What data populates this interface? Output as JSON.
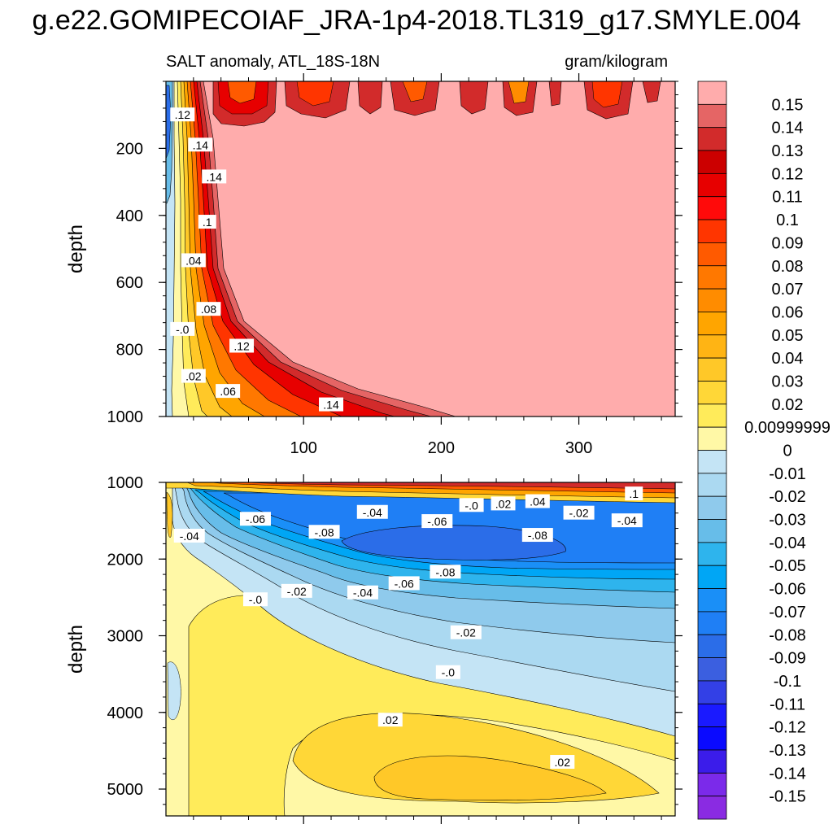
{
  "title": "g.e22.GOMIPECOIAF_JRA-1p4-2018.TL319_g17.SMYLE.004",
  "chart_data": [
    {
      "type": "heatmap",
      "panel": "upper",
      "subtitle_left": "SALT anomaly, ATL_18S-18N",
      "subtitle_right": "gram/kilogram",
      "ylabel": "depth",
      "xlabel": "",
      "xlim": [
        0,
        370
      ],
      "ylim": [
        1000,
        0
      ],
      "x_ticks": [
        "100",
        "200",
        "300"
      ],
      "y_ticks": [
        "200",
        "400",
        "600",
        "800",
        "1000"
      ],
      "fill_outside": 0.15,
      "contour_labels": [
        {
          "text": ".12",
          "x": 12,
          "y": 100
        },
        {
          "text": ".14",
          "x": 25,
          "y": 190
        },
        {
          "text": ".14",
          "x": 35,
          "y": 285
        },
        {
          "text": ".1",
          "x": 30,
          "y": 420
        },
        {
          "text": ".04",
          "x": 20,
          "y": 535
        },
        {
          "text": ".08",
          "x": 31,
          "y": 680
        },
        {
          "text": "-.0",
          "x": 12,
          "y": 740
        },
        {
          "text": ".12",
          "x": 55,
          "y": 790
        },
        {
          "text": ".02",
          "x": 20,
          "y": 880
        },
        {
          "text": ".06",
          "x": 45,
          "y": 925
        },
        {
          "text": ".14",
          "x": 120,
          "y": 965
        }
      ]
    },
    {
      "type": "heatmap",
      "panel": "lower",
      "ylabel": "depth",
      "xlabel": "",
      "xlim": [
        0,
        370
      ],
      "ylim": [
        5350,
        1000
      ],
      "y_ticks": [
        "1000",
        "2000",
        "3000",
        "4000",
        "5000"
      ],
      "contour_labels": [
        {
          "text": ".1",
          "x": 340,
          "y": 1150
        },
        {
          "text": ".04",
          "x": 270,
          "y": 1250
        },
        {
          "text": ".02",
          "x": 245,
          "y": 1280
        },
        {
          "text": "-.0",
          "x": 222,
          "y": 1300
        },
        {
          "text": "-.02",
          "x": 300,
          "y": 1400
        },
        {
          "text": "-.04",
          "x": 335,
          "y": 1500
        },
        {
          "text": "-.04",
          "x": 150,
          "y": 1390
        },
        {
          "text": "-.06",
          "x": 65,
          "y": 1480
        },
        {
          "text": "-.06",
          "x": 197,
          "y": 1510
        },
        {
          "text": "-.08",
          "x": 115,
          "y": 1650
        },
        {
          "text": "-.08",
          "x": 270,
          "y": 1690
        },
        {
          "text": "-.04",
          "x": 17,
          "y": 1700
        },
        {
          "text": "-.08",
          "x": 203,
          "y": 2170
        },
        {
          "text": "-.06",
          "x": 173,
          "y": 2320
        },
        {
          "text": "-.02",
          "x": 95,
          "y": 2420
        },
        {
          "text": "-.04",
          "x": 143,
          "y": 2440
        },
        {
          "text": "-.0",
          "x": 65,
          "y": 2530
        },
        {
          "text": "-.02",
          "x": 218,
          "y": 2960
        },
        {
          "text": "-.0",
          "x": 205,
          "y": 3480
        },
        {
          "text": ".02",
          "x": 163,
          "y": 4100
        },
        {
          "text": ".02",
          "x": 288,
          "y": 4650
        }
      ]
    }
  ],
  "colorbar": {
    "levels": [
      "0.15",
      "0.14",
      "0.13",
      "0.12",
      "0.11",
      "0.1",
      "0.09",
      "0.08",
      "0.07",
      "0.06",
      "0.05",
      "0.04",
      "0.03",
      "0.02",
      "0.00999999",
      "0",
      "-0.01",
      "-0.02",
      "-0.03",
      "-0.04",
      "-0.05",
      "-0.06",
      "-0.07",
      "-0.08",
      "-0.09",
      "-0.1",
      "-0.11",
      "-0.12",
      "-0.13",
      "-0.14",
      "-0.15"
    ],
    "colors": [
      "#ffacac",
      "#e56565",
      "#d22b2b",
      "#cc0000",
      "#e70000",
      "#ff0a0a",
      "#ff3500",
      "#ff5a00",
      "#ff7800",
      "#ff8c00",
      "#ffa500",
      "#ffb414",
      "#ffc828",
      "#ffd737",
      "#ffeb5a",
      "#fff8a6",
      "#c4e4f5",
      "#abd9f1",
      "#8fcaec",
      "#67bde9",
      "#2eb4ed",
      "#00a6f5",
      "#1a8ff7",
      "#1f7ff5",
      "#2b6de8",
      "#3b5fe0",
      "#3340e6",
      "#1a1aff",
      "#0a0aff",
      "#3b1cea",
      "#7b2aea",
      "#8a2be2"
    ]
  }
}
